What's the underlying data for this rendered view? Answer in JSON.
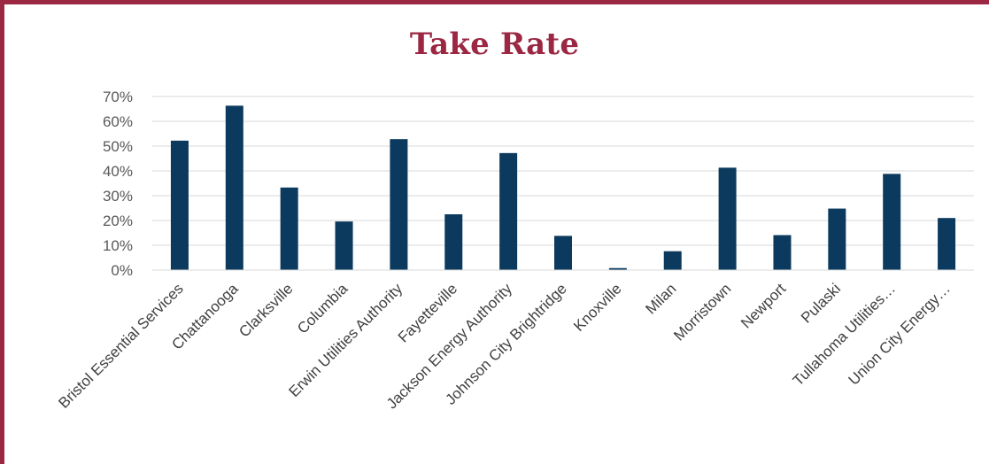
{
  "chart_data": {
    "type": "bar",
    "title": "Take Rate",
    "xlabel": "",
    "ylabel": "",
    "categories": [
      "Bristol Essential Services",
      "Chattanooga",
      "Clarksville",
      "Columbia",
      "Erwin Utilities Authority",
      "Fayetteville",
      "Jackson Energy Authority",
      "Johnson City Brightridge",
      "Knoxville",
      "Milan",
      "Morristown",
      "Newport",
      "Pulaski",
      "Tullahoma Utilities…",
      "Union City Energy…"
    ],
    "values": [
      52.2,
      66.3,
      33.3,
      19.6,
      52.8,
      22.5,
      47.2,
      13.8,
      0.8,
      7.6,
      41.3,
      14.1,
      24.8,
      38.8,
      21.0
    ],
    "ylim": [
      0,
      70
    ],
    "yticks": [
      0,
      10,
      20,
      30,
      40,
      50,
      60,
      70
    ],
    "ytick_labels": [
      "0%",
      "10%",
      "20%",
      "30%",
      "40%",
      "50%",
      "60%",
      "70%"
    ],
    "grid": true,
    "legend": "none",
    "bar_color": "#0b3a5e"
  },
  "colors": {
    "frame": "#9b2743",
    "title": "#9b2743",
    "grid": "#d9d9d9"
  }
}
